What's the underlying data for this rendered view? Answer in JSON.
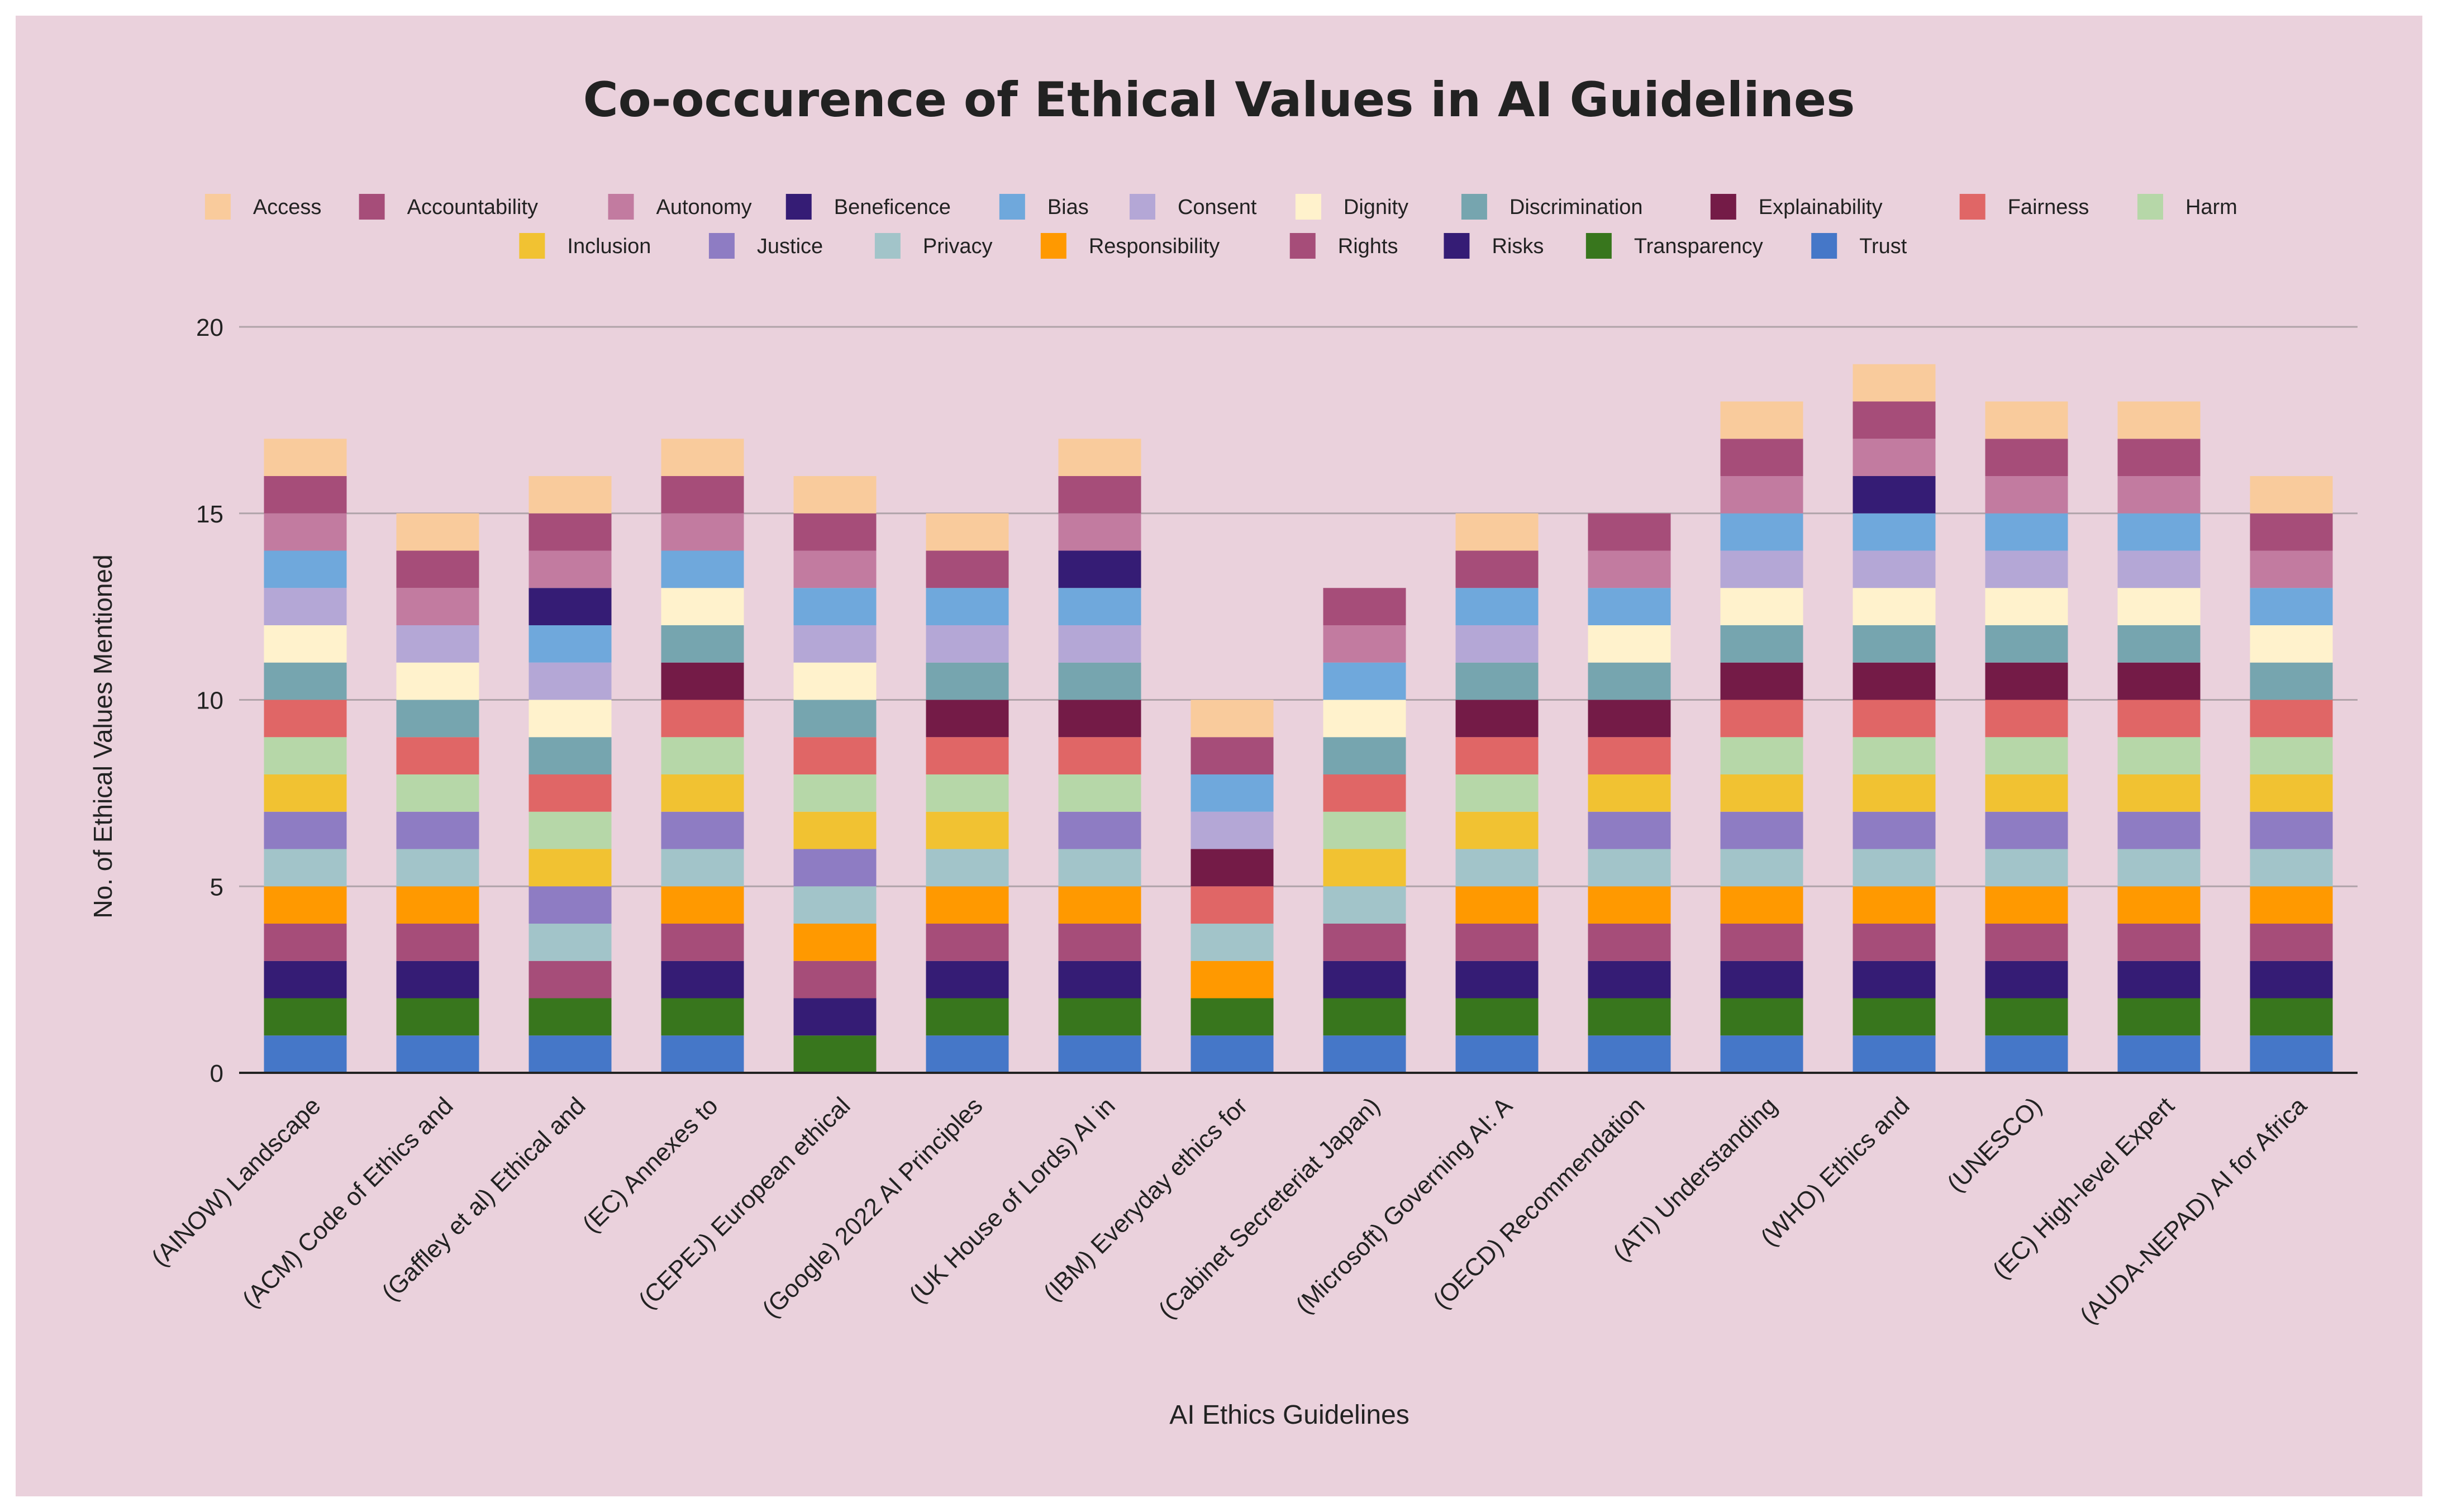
{
  "chart_data": {
    "type": "bar",
    "stacked": true,
    "title": "Co-occurence of Ethical Values in AI Guidelines",
    "xlabel": "AI Ethics Guidelines",
    "ylabel": "No. of Ethical Values Mentioned",
    "ylim": [
      0,
      20
    ],
    "yticks": [
      "0",
      "5",
      "10",
      "15",
      "20"
    ],
    "grid": true,
    "legend_position": "top",
    "categories": [
      "(AINOW) Landscape",
      "(ACM) Code of Ethics and",
      "(Gaffley et al) Ethical and",
      "(EC) Annexes to",
      "(CEPEJ) European ethical",
      "(Google) 2022 AI Principles",
      "(UK House of Lords) AI in",
      "(IBM) Everyday ethics for",
      "(Cabinet Secreteriat Japan)",
      "(Microsoft) Governing AI: A",
      "(OECD) Recommendation",
      "(ATI) Understanding",
      "(WHO) Ethics and",
      "(UNESCO)",
      "(EC) High-level Expert",
      "(AUDA-NEPAD) AI for Africa"
    ],
    "series": [
      {
        "name": "Trust",
        "color": "#4577c8",
        "values": [
          1,
          1,
          1,
          1,
          0,
          1,
          1,
          1,
          1,
          1,
          1,
          1,
          1,
          1,
          1,
          1
        ]
      },
      {
        "name": "Transparency",
        "color": "#38761d",
        "values": [
          1,
          1,
          1,
          1,
          1,
          1,
          1,
          1,
          1,
          1,
          1,
          1,
          1,
          1,
          1,
          1
        ]
      },
      {
        "name": "Risks",
        "color": "#351c75",
        "values": [
          1,
          1,
          0,
          1,
          1,
          1,
          1,
          0,
          1,
          1,
          1,
          1,
          1,
          1,
          1,
          1
        ]
      },
      {
        "name": "Rights",
        "color": "#a64d79",
        "values": [
          1,
          1,
          1,
          1,
          1,
          1,
          1,
          0,
          1,
          1,
          1,
          1,
          1,
          1,
          1,
          1
        ]
      },
      {
        "name": "Responsibility",
        "color": "#ff9900",
        "values": [
          1,
          1,
          0,
          1,
          1,
          1,
          1,
          1,
          0,
          1,
          1,
          1,
          1,
          1,
          1,
          1
        ]
      },
      {
        "name": "Privacy",
        "color": "#a2c4c9",
        "values": [
          1,
          1,
          1,
          1,
          1,
          1,
          1,
          1,
          1,
          1,
          1,
          1,
          1,
          1,
          1,
          1
        ]
      },
      {
        "name": "Justice",
        "color": "#8e7cc3",
        "values": [
          1,
          1,
          1,
          1,
          1,
          0,
          1,
          0,
          0,
          0,
          1,
          1,
          1,
          1,
          1,
          1
        ]
      },
      {
        "name": "Inclusion",
        "color": "#f1c232",
        "values": [
          1,
          0,
          1,
          1,
          1,
          1,
          0,
          0,
          1,
          1,
          1,
          1,
          1,
          1,
          1,
          1
        ]
      },
      {
        "name": "Harm",
        "color": "#b6d7a8",
        "values": [
          1,
          1,
          1,
          1,
          1,
          1,
          1,
          0,
          1,
          1,
          0,
          1,
          1,
          1,
          1,
          1
        ]
      },
      {
        "name": "Fairness",
        "color": "#e06666",
        "values": [
          1,
          1,
          1,
          1,
          1,
          1,
          1,
          1,
          1,
          1,
          1,
          1,
          1,
          1,
          1,
          1
        ]
      },
      {
        "name": "Explainability",
        "color": "#741b47",
        "values": [
          0,
          0,
          0,
          1,
          0,
          1,
          1,
          1,
          0,
          1,
          1,
          1,
          1,
          1,
          1,
          0
        ]
      },
      {
        "name": "Discrimination",
        "color": "#76a5af",
        "values": [
          1,
          1,
          1,
          1,
          1,
          1,
          1,
          0,
          1,
          1,
          1,
          1,
          1,
          1,
          1,
          1
        ]
      },
      {
        "name": "Dignity",
        "color": "#fff2cc",
        "values": [
          1,
          1,
          1,
          1,
          1,
          0,
          0,
          0,
          1,
          0,
          1,
          1,
          1,
          1,
          1,
          1
        ]
      },
      {
        "name": "Consent",
        "color": "#b4a7d6",
        "values": [
          1,
          1,
          1,
          0,
          1,
          1,
          1,
          1,
          0,
          1,
          0,
          1,
          1,
          1,
          1,
          0
        ]
      },
      {
        "name": "Bias",
        "color": "#6fa8dc",
        "values": [
          1,
          0,
          1,
          1,
          1,
          1,
          1,
          1,
          1,
          1,
          1,
          1,
          1,
          1,
          1,
          1
        ]
      },
      {
        "name": "Beneficence",
        "color": "#351c75",
        "values": [
          0,
          0,
          1,
          0,
          0,
          0,
          1,
          0,
          0,
          0,
          0,
          0,
          1,
          0,
          0,
          0
        ]
      },
      {
        "name": "Autonomy",
        "color": "#c27ba0",
        "values": [
          1,
          1,
          1,
          1,
          1,
          0,
          1,
          0,
          1,
          0,
          1,
          1,
          1,
          1,
          1,
          1
        ]
      },
      {
        "name": "Accountability",
        "color": "#a64d79",
        "values": [
          1,
          1,
          1,
          1,
          1,
          1,
          1,
          1,
          1,
          1,
          1,
          1,
          1,
          1,
          1,
          1
        ]
      },
      {
        "name": "Access",
        "color": "#f9cb9c",
        "values": [
          1,
          1,
          1,
          1,
          1,
          1,
          1,
          1,
          0,
          1,
          0,
          1,
          1,
          1,
          1,
          1
        ]
      }
    ],
    "legend_order": [
      "Access",
      "Accountability",
      "Autonomy",
      "Beneficence",
      "Bias",
      "Consent",
      "Dignity",
      "Discrimination",
      "Explainability",
      "Fairness",
      "Harm",
      "Inclusion",
      "Justice",
      "Privacy",
      "Responsibility",
      "Rights",
      "Risks",
      "Transparency",
      "Trust"
    ]
  },
  "colors": {
    "background": "#ead1dc",
    "gridline": "#b0a3a9",
    "axis": "#222222"
  }
}
